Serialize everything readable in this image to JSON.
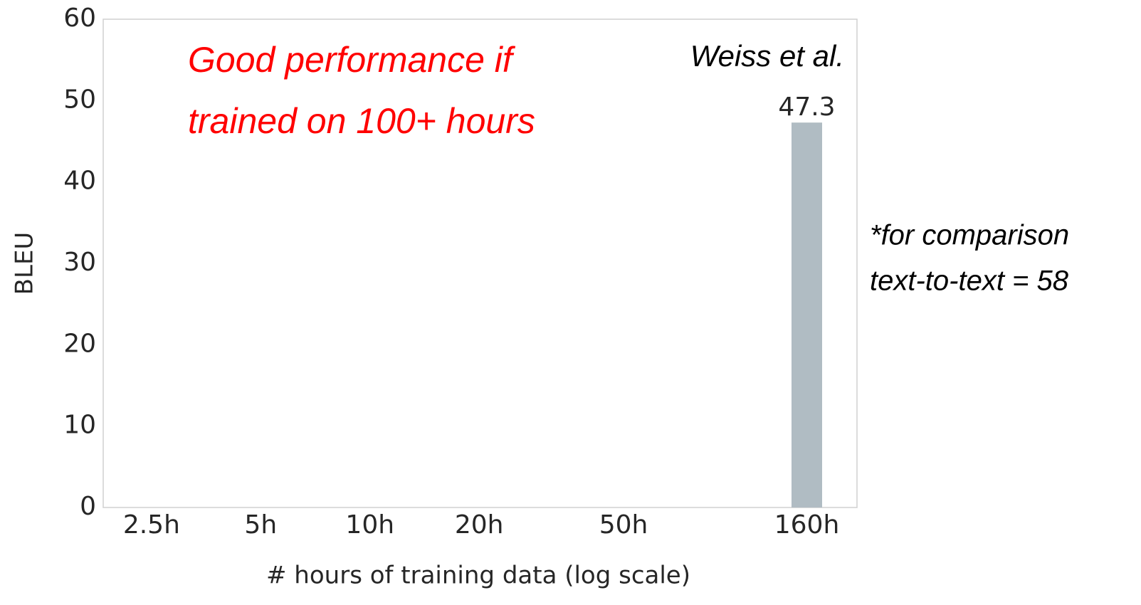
{
  "chart_data": {
    "type": "bar",
    "x": [
      160
    ],
    "values": [
      47.3
    ],
    "series_name": "Weiss et al.",
    "color": "#b0bcc3",
    "xscale": "log",
    "xlim": [
      1.84,
      220
    ],
    "xticks": [
      {
        "value": 2.5,
        "label": "2.5h"
      },
      {
        "value": 5,
        "label": "5h"
      },
      {
        "value": 10,
        "label": "10h"
      },
      {
        "value": 20,
        "label": "20h"
      },
      {
        "value": 50,
        "label": "50h"
      },
      {
        "value": 160,
        "label": "160h"
      }
    ],
    "ylim": [
      0,
      60
    ],
    "yticks": [
      0,
      10,
      20,
      30,
      40,
      50,
      60
    ],
    "grid": false,
    "xlabel": "# hours of training data (log scale)",
    "ylabel": "BLEU",
    "annotation": {
      "lines": [
        "Good performance if",
        "trained on 100+ hours"
      ],
      "color": "#ff0000"
    },
    "side_note": [
      "*for comparison",
      "text-to-text = 58"
    ]
  }
}
